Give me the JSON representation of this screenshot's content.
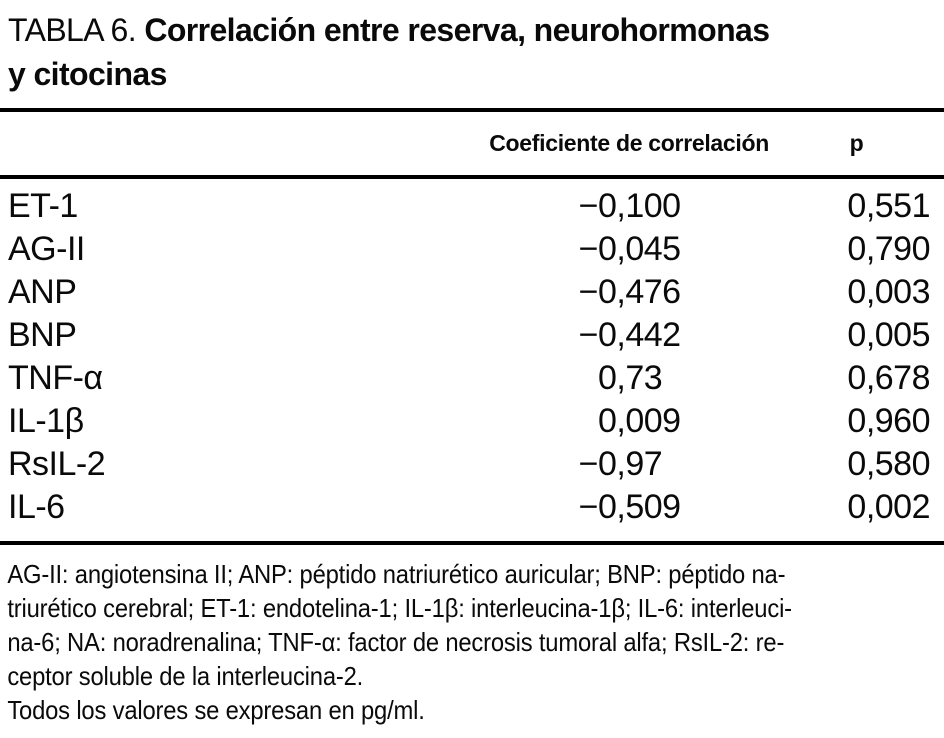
{
  "title": {
    "prefix": "TABLA 6.",
    "bold_line1": "Correlación entre reserva, neurohormonas",
    "bold_line2": "y citocinas"
  },
  "table": {
    "columns": {
      "coefficient": "Coeficiente de correlación",
      "p": "p"
    },
    "rows": [
      {
        "label": "ET-1",
        "coefficient": "−0,100",
        "p": "0,551"
      },
      {
        "label": "AG-II",
        "coefficient": "−0,045",
        "p": "0,790"
      },
      {
        "label": "ANP",
        "coefficient": "−0,476",
        "p": "0,003"
      },
      {
        "label": "BNP",
        "coefficient": "−0,442",
        "p": "0,005"
      },
      {
        "label": "TNF-α",
        "coefficient": "0,73",
        "p": "0,678"
      },
      {
        "label": "IL-1β",
        "coefficient": "0,009",
        "p": "0,960"
      },
      {
        "label": "RsIL-2",
        "coefficient": "−0,97",
        "p": "0,580"
      },
      {
        "label": "IL-6",
        "coefficient": "−0,509",
        "p": "0,002"
      }
    ]
  },
  "footnote": {
    "lines": [
      "AG-II: angiotensina II; ANP: péptido natriurético auricular; BNP: péptido na-",
      "triurético cerebral; ET-1: endotelina-1; IL-1β: interleucina-1β; IL-6: interleuci-",
      "na-6; NA: noradrenalina; TNF-α: factor de necrosis tumoral alfa; RsIL-2: re-",
      "ceptor soluble de la interleucina-2.",
      "Todos los valores se expresan en pg/ml."
    ]
  },
  "colors": {
    "text": "#0a0a0a",
    "background": "#ffffff",
    "rule": "#000000"
  }
}
